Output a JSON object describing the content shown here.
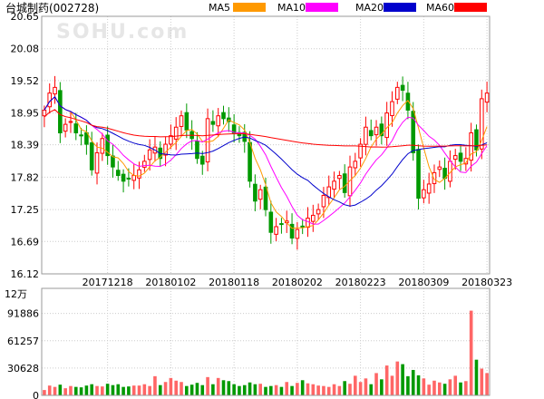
{
  "chart_data": {
    "type": "candlestick",
    "title": "台城制药(002728)",
    "watermark": "SOHU.com",
    "legend": [
      {
        "name": "MA5",
        "color": "#ff9900"
      },
      {
        "name": "MA10",
        "color": "#ff00ff"
      },
      {
        "name": "MA20",
        "color": "#0000cc"
      },
      {
        "name": "MA60",
        "color": "#ff0000"
      }
    ],
    "colors": {
      "up": "#ff0000",
      "down": "#009900",
      "grid": "#cccccc",
      "border": "#999999"
    },
    "price_axis": {
      "ticks": [
        "20.65",
        "20.08",
        "19.52",
        "18.95",
        "18.39",
        "17.82",
        "17.25",
        "16.69",
        "16.12"
      ],
      "ylim": [
        16.12,
        20.65
      ]
    },
    "volume_axis": {
      "unit": "12万",
      "ticks": [
        "91886",
        "61257",
        "30628",
        "0"
      ],
      "ylim": [
        0,
        120000
      ]
    },
    "x_labels": [
      {
        "label": "20171218",
        "index": 12
      },
      {
        "label": "20180102",
        "index": 24
      },
      {
        "label": "20180118",
        "index": 36
      },
      {
        "label": "20180202",
        "index": 48
      },
      {
        "label": "20180223",
        "index": 60
      },
      {
        "label": "20180309",
        "index": 72
      },
      {
        "label": "20180323",
        "index": 84
      }
    ],
    "close": [
      19.0,
      19.3,
      19.4,
      18.6,
      18.75,
      18.8,
      18.6,
      18.55,
      18.4,
      17.95,
      18.25,
      18.5,
      18.2,
      18.0,
      17.85,
      17.75,
      17.8,
      17.85,
      17.95,
      18.1,
      18.3,
      18.35,
      18.15,
      18.4,
      18.55,
      18.7,
      18.9,
      18.65,
      18.5,
      18.15,
      18.05,
      18.85,
      18.75,
      18.9,
      18.85,
      18.8,
      18.6,
      18.55,
      18.45,
      17.75,
      17.4,
      17.6,
      17.25,
      16.85,
      16.95,
      17.0,
      17.05,
      16.75,
      16.9,
      16.95,
      17.1,
      17.15,
      17.25,
      17.5,
      17.65,
      17.75,
      17.85,
      17.55,
      18.0,
      18.1,
      18.4,
      18.7,
      18.55,
      18.7,
      18.55,
      18.95,
      19.15,
      19.4,
      19.35,
      19.0,
      18.25,
      17.45,
      17.6,
      17.7,
      17.9,
      18.0,
      17.8,
      18.1,
      18.2,
      18.1,
      18.15,
      18.6,
      18.3,
      19.2,
      19.3
    ],
    "volume": [
      6000,
      11000,
      9500,
      12000,
      8000,
      10500,
      9500,
      9000,
      11000,
      12500,
      10500,
      10000,
      13000,
      11500,
      12500,
      9500,
      10000,
      11000,
      11000,
      12500,
      10500,
      21500,
      11500,
      15000,
      19500,
      16500,
      15000,
      10500,
      12000,
      14000,
      11500,
      20500,
      12500,
      19500,
      17000,
      16000,
      12500,
      10500,
      11500,
      14500,
      12500,
      13000,
      9500,
      10500,
      11500,
      9500,
      15000,
      10500,
      14000,
      17000,
      13500,
      12500,
      11000,
      10500,
      9500,
      12500,
      10500,
      16000,
      13000,
      22000,
      15000,
      19000,
      12500,
      25000,
      18000,
      33500,
      22000,
      38000,
      35000,
      21500,
      28500,
      22500,
      19000,
      12000,
      16500,
      14500,
      13000,
      18000,
      22000,
      14500,
      16000,
      95000,
      40000,
      30000,
      25000
    ]
  }
}
